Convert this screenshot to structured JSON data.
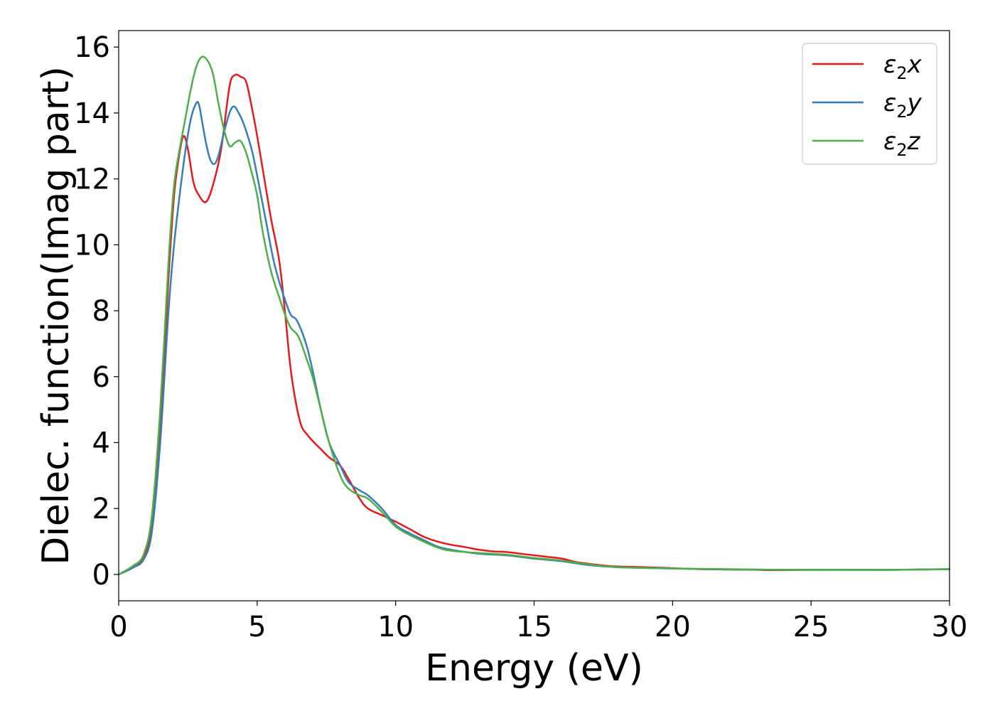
{
  "chart_data": {
    "type": "line",
    "title": "",
    "xlabel": "Energy (eV)",
    "ylabel": "Dielec. function(Imag part)",
    "xlim": [
      0,
      30
    ],
    "ylim": [
      -0.8,
      16.5
    ],
    "xticks": [
      0,
      5,
      10,
      15,
      20,
      25,
      30
    ],
    "yticks": [
      0,
      2,
      4,
      6,
      8,
      10,
      12,
      14,
      16
    ],
    "grid": false,
    "legend_position": "top-right",
    "series": [
      {
        "name": "ε₂x",
        "legend": {
          "base": "ε",
          "sub": "2",
          "suffix": "x"
        },
        "color": "#e41a1c",
        "x": [
          0,
          0.5,
          0.9,
          1.2,
          1.5,
          1.8,
          2.0,
          2.2,
          2.35,
          2.5,
          2.7,
          2.9,
          3.15,
          3.4,
          3.7,
          4.0,
          4.2,
          4.4,
          4.6,
          4.8,
          5.0,
          5.2,
          5.5,
          5.8,
          6.0,
          6.2,
          6.4,
          6.6,
          6.8,
          7.0,
          7.3,
          7.6,
          8.0,
          8.3,
          8.7,
          9.0,
          9.5,
          10.0,
          10.5,
          11.0,
          11.5,
          12.0,
          12.5,
          13.0,
          13.5,
          14.0,
          14.5,
          15.0,
          15.5,
          16.0,
          16.5,
          17.0,
          17.5,
          18.0,
          19.0,
          20.0,
          21.0,
          22.0,
          23.0,
          23.5,
          24.0,
          25.0,
          26.0,
          27.0,
          28.0,
          29.0,
          30.0
        ],
        "y": [
          0,
          0.2,
          0.5,
          1.5,
          4.5,
          9.0,
          11.5,
          12.8,
          13.3,
          12.9,
          11.9,
          11.5,
          11.3,
          11.8,
          12.9,
          14.8,
          15.15,
          15.1,
          14.95,
          14.2,
          13.3,
          12.3,
          10.8,
          9.5,
          8.0,
          6.3,
          5.2,
          4.5,
          4.25,
          4.05,
          3.8,
          3.55,
          3.3,
          2.9,
          2.3,
          2.0,
          1.8,
          1.6,
          1.38,
          1.15,
          1.0,
          0.9,
          0.83,
          0.75,
          0.7,
          0.68,
          0.63,
          0.58,
          0.53,
          0.48,
          0.38,
          0.32,
          0.27,
          0.24,
          0.22,
          0.19,
          0.16,
          0.15,
          0.14,
          0.13,
          0.13,
          0.14,
          0.14,
          0.14,
          0.14,
          0.15,
          0.16
        ]
      },
      {
        "name": "ε₂y",
        "legend": {
          "base": "ε",
          "sub": "2",
          "suffix": "y"
        },
        "color": "#377eb8",
        "x": [
          0,
          0.5,
          0.9,
          1.2,
          1.5,
          1.8,
          2.0,
          2.2,
          2.4,
          2.6,
          2.8,
          2.9,
          3.0,
          3.15,
          3.3,
          3.45,
          3.6,
          3.8,
          4.0,
          4.15,
          4.3,
          4.5,
          4.8,
          5.0,
          5.3,
          5.6,
          5.9,
          6.2,
          6.4,
          6.6,
          6.8,
          7.0,
          7.3,
          7.6,
          8.0,
          8.3,
          8.7,
          9.0,
          9.5,
          10.0,
          10.5,
          11.0,
          11.5,
          12.0,
          13.0,
          14.0,
          15.0,
          16.0,
          17.0,
          18.0,
          20.0,
          22.0,
          24.0,
          26.0,
          28.0,
          30.0
        ],
        "y": [
          0,
          0.2,
          0.45,
          1.3,
          4.0,
          8.0,
          10.0,
          11.5,
          12.8,
          13.8,
          14.3,
          14.25,
          13.8,
          13.1,
          12.6,
          12.45,
          12.7,
          13.4,
          14.0,
          14.2,
          14.05,
          13.7,
          12.9,
          12.1,
          10.8,
          9.5,
          8.6,
          7.9,
          7.75,
          7.4,
          6.9,
          6.2,
          5.0,
          4.0,
          3.3,
          2.8,
          2.55,
          2.4,
          2.0,
          1.5,
          1.25,
          1.05,
          0.85,
          0.75,
          0.63,
          0.58,
          0.48,
          0.4,
          0.28,
          0.22,
          0.18,
          0.15,
          0.14,
          0.14,
          0.14,
          0.16
        ]
      },
      {
        "name": "ε₂z",
        "legend": {
          "base": "ε",
          "sub": "2",
          "suffix": "z"
        },
        "color": "#4daf4a",
        "x": [
          0,
          0.5,
          0.9,
          1.2,
          1.5,
          1.8,
          2.0,
          2.2,
          2.4,
          2.6,
          2.8,
          3.0,
          3.2,
          3.4,
          3.6,
          3.8,
          4.0,
          4.2,
          4.4,
          4.6,
          4.8,
          5.0,
          5.2,
          5.5,
          5.8,
          6.0,
          6.2,
          6.5,
          6.8,
          7.0,
          7.3,
          7.6,
          8.0,
          8.3,
          8.7,
          9.0,
          9.5,
          10.0,
          10.5,
          11.0,
          11.5,
          12.0,
          13.0,
          14.0,
          15.0,
          16.0,
          17.0,
          18.0,
          20.0,
          22.0,
          24.0,
          26.0,
          28.0,
          30.0
        ],
        "y": [
          0,
          0.25,
          0.6,
          1.8,
          5.0,
          9.5,
          11.8,
          12.9,
          13.8,
          14.7,
          15.4,
          15.7,
          15.6,
          15.2,
          14.3,
          13.5,
          13.0,
          13.1,
          13.15,
          12.8,
          12.2,
          11.5,
          10.4,
          9.2,
          8.4,
          7.9,
          7.5,
          7.2,
          6.5,
          6.0,
          5.0,
          4.0,
          3.0,
          2.6,
          2.4,
          2.3,
          1.9,
          1.45,
          1.2,
          1.0,
          0.82,
          0.72,
          0.65,
          0.6,
          0.5,
          0.42,
          0.3,
          0.22,
          0.18,
          0.16,
          0.14,
          0.14,
          0.14,
          0.16
        ]
      }
    ]
  }
}
